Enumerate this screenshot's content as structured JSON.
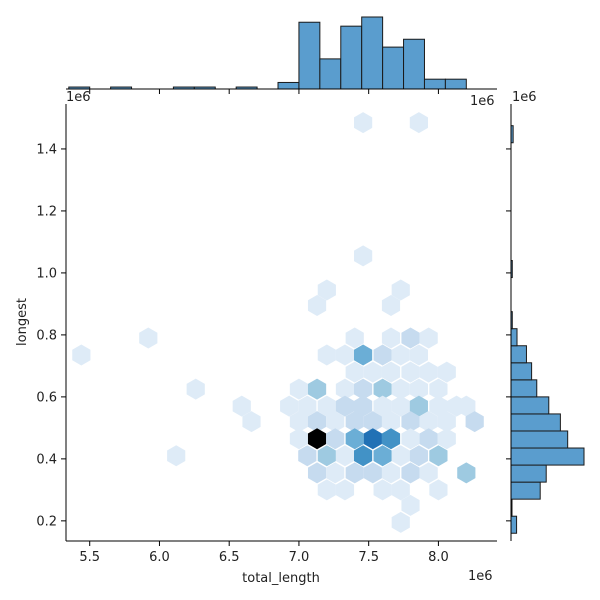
{
  "chart_data": {
    "type": "jointplot-hex",
    "joint": {
      "type": "hexbin",
      "xlabel": "total_length",
      "ylabel": "longest",
      "x_offset_label": "1e6",
      "y_offset_label": "1e6",
      "xlim": [
        5.33,
        8.42
      ],
      "ylim": [
        0.135,
        1.545
      ],
      "xticks": [
        5.5,
        6.0,
        6.5,
        7.0,
        7.5,
        8.0
      ],
      "xtick_labels": [
        "5.5",
        "6.0",
        "6.5",
        "7.0",
        "7.5",
        "8.0"
      ],
      "yticks": [
        0.2,
        0.4,
        0.6,
        0.8,
        1.0,
        1.2,
        1.4
      ],
      "ytick_labels": [
        "0.2",
        "0.4",
        "0.6",
        "0.8",
        "1.0",
        "1.2",
        "1.4"
      ],
      "colormap": [
        "#deebf7",
        "#c6dbef",
        "#9ecae1",
        "#6baed6",
        "#4292c6",
        "#2171b5",
        "#000000"
      ],
      "hexes": [
        {
          "x": 7.46,
          "y": 1.485,
          "count": 1
        },
        {
          "x": 7.86,
          "y": 1.485,
          "count": 1
        },
        {
          "x": 7.46,
          "y": 1.055,
          "count": 1
        },
        {
          "x": 7.2,
          "y": 0.945,
          "count": 1
        },
        {
          "x": 7.73,
          "y": 0.945,
          "count": 1
        },
        {
          "x": 7.13,
          "y": 0.895,
          "count": 1
        },
        {
          "x": 7.66,
          "y": 0.895,
          "count": 1
        },
        {
          "x": 5.92,
          "y": 0.79,
          "count": 1
        },
        {
          "x": 5.44,
          "y": 0.735,
          "count": 1
        },
        {
          "x": 7.4,
          "y": 0.79,
          "count": 1
        },
        {
          "x": 7.66,
          "y": 0.79,
          "count": 1
        },
        {
          "x": 7.8,
          "y": 0.79,
          "count": 2
        },
        {
          "x": 7.93,
          "y": 0.79,
          "count": 1
        },
        {
          "x": 7.2,
          "y": 0.735,
          "count": 1
        },
        {
          "x": 7.33,
          "y": 0.735,
          "count": 1
        },
        {
          "x": 7.46,
          "y": 0.735,
          "count": 4
        },
        {
          "x": 7.6,
          "y": 0.735,
          "count": 2
        },
        {
          "x": 7.73,
          "y": 0.735,
          "count": 1
        },
        {
          "x": 7.86,
          "y": 0.735,
          "count": 1
        },
        {
          "x": 7.4,
          "y": 0.68,
          "count": 1
        },
        {
          "x": 7.53,
          "y": 0.68,
          "count": 1
        },
        {
          "x": 7.66,
          "y": 0.68,
          "count": 1
        },
        {
          "x": 7.8,
          "y": 0.68,
          "count": 1
        },
        {
          "x": 7.93,
          "y": 0.68,
          "count": 1
        },
        {
          "x": 8.06,
          "y": 0.68,
          "count": 1
        },
        {
          "x": 6.26,
          "y": 0.625,
          "count": 1
        },
        {
          "x": 7.0,
          "y": 0.625,
          "count": 1
        },
        {
          "x": 7.13,
          "y": 0.625,
          "count": 3
        },
        {
          "x": 7.33,
          "y": 0.625,
          "count": 1
        },
        {
          "x": 7.46,
          "y": 0.625,
          "count": 2
        },
        {
          "x": 7.6,
          "y": 0.625,
          "count": 3
        },
        {
          "x": 7.73,
          "y": 0.625,
          "count": 1
        },
        {
          "x": 7.86,
          "y": 0.625,
          "count": 1
        },
        {
          "x": 8.0,
          "y": 0.625,
          "count": 1
        },
        {
          "x": 6.59,
          "y": 0.57,
          "count": 1
        },
        {
          "x": 6.93,
          "y": 0.57,
          "count": 1
        },
        {
          "x": 7.06,
          "y": 0.57,
          "count": 1
        },
        {
          "x": 7.2,
          "y": 0.57,
          "count": 1
        },
        {
          "x": 7.33,
          "y": 0.57,
          "count": 2
        },
        {
          "x": 7.46,
          "y": 0.57,
          "count": 2
        },
        {
          "x": 7.6,
          "y": 0.57,
          "count": 1
        },
        {
          "x": 7.73,
          "y": 0.57,
          "count": 1
        },
        {
          "x": 7.86,
          "y": 0.57,
          "count": 3
        },
        {
          "x": 8.0,
          "y": 0.57,
          "count": 1
        },
        {
          "x": 8.13,
          "y": 0.57,
          "count": 1
        },
        {
          "x": 8.2,
          "y": 0.57,
          "count": 1
        },
        {
          "x": 6.66,
          "y": 0.52,
          "count": 1
        },
        {
          "x": 7.0,
          "y": 0.52,
          "count": 1
        },
        {
          "x": 7.13,
          "y": 0.52,
          "count": 2
        },
        {
          "x": 7.26,
          "y": 0.52,
          "count": 1
        },
        {
          "x": 7.4,
          "y": 0.52,
          "count": 2
        },
        {
          "x": 7.53,
          "y": 0.52,
          "count": 2
        },
        {
          "x": 7.66,
          "y": 0.52,
          "count": 1
        },
        {
          "x": 7.8,
          "y": 0.52,
          "count": 2
        },
        {
          "x": 7.93,
          "y": 0.52,
          "count": 1
        },
        {
          "x": 8.06,
          "y": 0.52,
          "count": 1
        },
        {
          "x": 8.26,
          "y": 0.52,
          "count": 2
        },
        {
          "x": 7.0,
          "y": 0.465,
          "count": 1
        },
        {
          "x": 7.13,
          "y": 0.465,
          "count": 7
        },
        {
          "x": 7.26,
          "y": 0.465,
          "count": 2
        },
        {
          "x": 7.4,
          "y": 0.465,
          "count": 4
        },
        {
          "x": 7.53,
          "y": 0.465,
          "count": 6
        },
        {
          "x": 7.66,
          "y": 0.465,
          "count": 5
        },
        {
          "x": 7.8,
          "y": 0.465,
          "count": 1
        },
        {
          "x": 7.93,
          "y": 0.465,
          "count": 2
        },
        {
          "x": 8.06,
          "y": 0.465,
          "count": 1
        },
        {
          "x": 6.12,
          "y": 0.41,
          "count": 1
        },
        {
          "x": 7.06,
          "y": 0.41,
          "count": 2
        },
        {
          "x": 7.2,
          "y": 0.41,
          "count": 3
        },
        {
          "x": 7.33,
          "y": 0.41,
          "count": 1
        },
        {
          "x": 7.46,
          "y": 0.41,
          "count": 5
        },
        {
          "x": 7.6,
          "y": 0.41,
          "count": 4
        },
        {
          "x": 7.73,
          "y": 0.41,
          "count": 1
        },
        {
          "x": 7.86,
          "y": 0.41,
          "count": 2
        },
        {
          "x": 8.0,
          "y": 0.41,
          "count": 3
        },
        {
          "x": 7.13,
          "y": 0.355,
          "count": 2
        },
        {
          "x": 7.26,
          "y": 0.355,
          "count": 1
        },
        {
          "x": 7.4,
          "y": 0.355,
          "count": 2
        },
        {
          "x": 7.53,
          "y": 0.355,
          "count": 2
        },
        {
          "x": 7.66,
          "y": 0.355,
          "count": 1
        },
        {
          "x": 7.8,
          "y": 0.355,
          "count": 2
        },
        {
          "x": 7.93,
          "y": 0.355,
          "count": 1
        },
        {
          "x": 8.2,
          "y": 0.355,
          "count": 3
        },
        {
          "x": 7.2,
          "y": 0.3,
          "count": 1
        },
        {
          "x": 7.33,
          "y": 0.3,
          "count": 1
        },
        {
          "x": 7.6,
          "y": 0.3,
          "count": 1
        },
        {
          "x": 7.73,
          "y": 0.3,
          "count": 1
        },
        {
          "x": 8.0,
          "y": 0.3,
          "count": 1
        },
        {
          "x": 7.8,
          "y": 0.25,
          "count": 1
        },
        {
          "x": 7.73,
          "y": 0.195,
          "count": 1
        }
      ]
    },
    "marginal_x": {
      "type": "histogram",
      "bins": [
        {
          "x0": 5.35,
          "x1": 5.5,
          "count": 0.3
        },
        {
          "x0": 5.5,
          "x1": 5.65,
          "count": 0
        },
        {
          "x0": 5.65,
          "x1": 5.8,
          "count": 0.3
        },
        {
          "x0": 5.8,
          "x1": 5.95,
          "count": 0
        },
        {
          "x0": 5.95,
          "x1": 6.1,
          "count": 0
        },
        {
          "x0": 6.1,
          "x1": 6.25,
          "count": 0.3
        },
        {
          "x0": 6.25,
          "x1": 6.4,
          "count": 0.3
        },
        {
          "x0": 6.4,
          "x1": 6.55,
          "count": 0
        },
        {
          "x0": 6.55,
          "x1": 6.7,
          "count": 0.3
        },
        {
          "x0": 6.7,
          "x1": 6.85,
          "count": 0
        },
        {
          "x0": 6.85,
          "x1": 7.0,
          "count": 1
        },
        {
          "x0": 7.0,
          "x1": 7.15,
          "count": 10.2
        },
        {
          "x0": 7.15,
          "x1": 7.3,
          "count": 4.6
        },
        {
          "x0": 7.3,
          "x1": 7.45,
          "count": 9.6
        },
        {
          "x0": 7.45,
          "x1": 7.6,
          "count": 11.0
        },
        {
          "x0": 7.6,
          "x1": 7.75,
          "count": 6.4
        },
        {
          "x0": 7.75,
          "x1": 7.9,
          "count": 7.6
        },
        {
          "x0": 7.9,
          "x1": 8.05,
          "count": 1.5
        },
        {
          "x0": 8.05,
          "x1": 8.2,
          "count": 1.5
        }
      ]
    },
    "marginal_y": {
      "type": "histogram",
      "bins": [
        {
          "y0": 0.16,
          "y1": 0.215,
          "count": 1.3
        },
        {
          "y0": 0.215,
          "y1": 0.27,
          "count": 0.2
        },
        {
          "y0": 0.27,
          "y1": 0.325,
          "count": 6.8
        },
        {
          "y0": 0.325,
          "y1": 0.38,
          "count": 8.2
        },
        {
          "y0": 0.38,
          "y1": 0.435,
          "count": 17.0
        },
        {
          "y0": 0.435,
          "y1": 0.49,
          "count": 13.2
        },
        {
          "y0": 0.49,
          "y1": 0.545,
          "count": 11.5
        },
        {
          "y0": 0.545,
          "y1": 0.6,
          "count": 8.8
        },
        {
          "y0": 0.6,
          "y1": 0.655,
          "count": 6.0
        },
        {
          "y0": 0.655,
          "y1": 0.71,
          "count": 4.8
        },
        {
          "y0": 0.71,
          "y1": 0.765,
          "count": 3.6
        },
        {
          "y0": 0.765,
          "y1": 0.82,
          "count": 1.4
        },
        {
          "y0": 0.82,
          "y1": 0.875,
          "count": 0.3
        },
        {
          "y0": 0.985,
          "y1": 1.04,
          "count": 0.3
        },
        {
          "y0": 1.42,
          "y1": 1.475,
          "count": 0.5
        }
      ]
    }
  }
}
